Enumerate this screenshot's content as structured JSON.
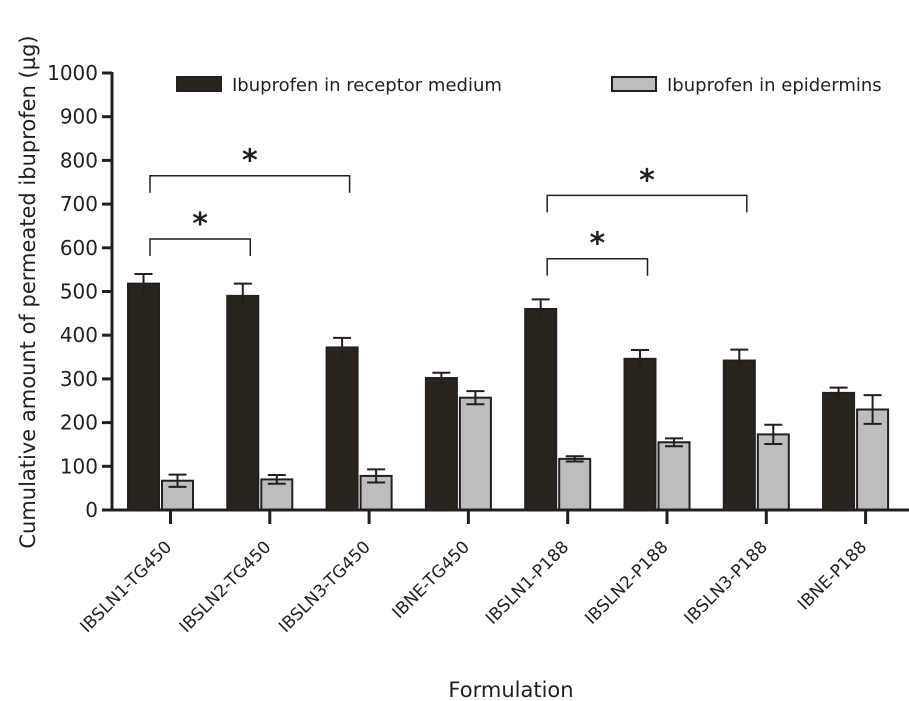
{
  "chart_data": {
    "type": "bar",
    "xlabel": "Formulation",
    "ylabel": "Cumulative amount of permeated ibuprofen (µg)",
    "ylim": [
      0,
      1000
    ],
    "yticks": [
      0,
      100,
      200,
      300,
      400,
      500,
      600,
      700,
      800,
      900,
      1000
    ],
    "categories": [
      "IBSLN1-TG450",
      "IBSLN2-TG450",
      "IBSLN3-TG450",
      "IBNE-TG450",
      "IBSLN1-P188",
      "IBSLN2-P188",
      "IBSLN3-P188",
      "IBNE-P188"
    ],
    "series": [
      {
        "name": "Ibuprofen in receptor medium",
        "color": "#2a241e",
        "values": [
          518,
          490,
          372,
          302,
          460,
          346,
          342,
          268
        ],
        "errors": [
          22,
          28,
          22,
          12,
          22,
          20,
          25,
          12
        ]
      },
      {
        "name": "Ibuprofen in epidermins",
        "color": "#bdbdbd",
        "values": [
          67,
          70,
          78,
          257,
          117,
          155,
          173,
          230
        ],
        "errors": [
          14,
          10,
          15,
          15,
          6,
          9,
          22,
          33
        ]
      }
    ],
    "significance": [
      {
        "from": "IBSLN1-TG450",
        "to": "IBSLN2-TG450",
        "label": "*",
        "y": 620
      },
      {
        "from": "IBSLN1-TG450",
        "to": "IBSLN3-TG450",
        "label": "*",
        "y": 765
      },
      {
        "from": "IBSLN1-P188",
        "to": "IBSLN2-P188",
        "label": "*",
        "y": 575
      },
      {
        "from": "IBSLN1-P188",
        "to": "IBSLN3-P188",
        "label": "*",
        "y": 720
      }
    ],
    "legend_position": "top",
    "grid": false
  }
}
